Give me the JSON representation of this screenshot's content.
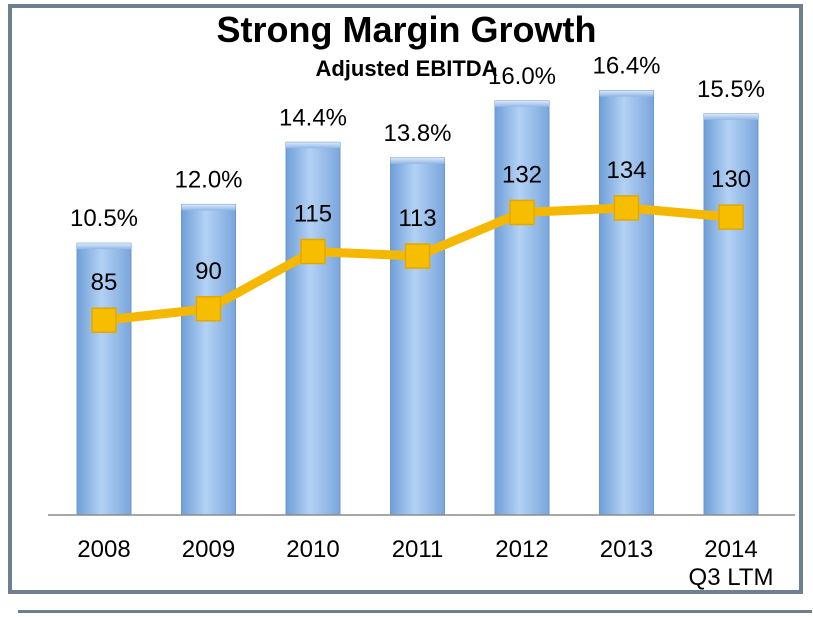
{
  "chart_data": {
    "type": "bar",
    "title": "Strong Margin Growth",
    "subtitle": "Adjusted EBITDA",
    "categories": [
      "2008",
      "2009",
      "2010",
      "2011",
      "2012",
      "2013",
      "2014\nQ3 LTM"
    ],
    "category_lines": [
      [
        "2008"
      ],
      [
        "2009"
      ],
      [
        "2010"
      ],
      [
        "2011"
      ],
      [
        "2012"
      ],
      [
        "2013"
      ],
      [
        "2014",
        "Q3 LTM"
      ]
    ],
    "series": [
      {
        "type": "bar",
        "values": [
          10.5,
          12.0,
          14.4,
          13.8,
          16.0,
          16.4,
          15.5
        ],
        "labels": [
          "10.5%",
          "12.0%",
          "14.4%",
          "13.8%",
          "16.0%",
          "16.4%",
          "15.5%"
        ],
        "color": "#9cc2ee"
      },
      {
        "type": "line",
        "values": [
          85,
          90,
          115,
          113,
          132,
          134,
          130
        ],
        "labels": [
          "85",
          "90",
          "115",
          "113",
          "132",
          "134",
          "130"
        ],
        "color": "#f5b800"
      }
    ],
    "bar_ylim": [
      0,
      17
    ],
    "line_ylim": [
      0,
      192
    ],
    "grid": false,
    "legend": "none"
  }
}
